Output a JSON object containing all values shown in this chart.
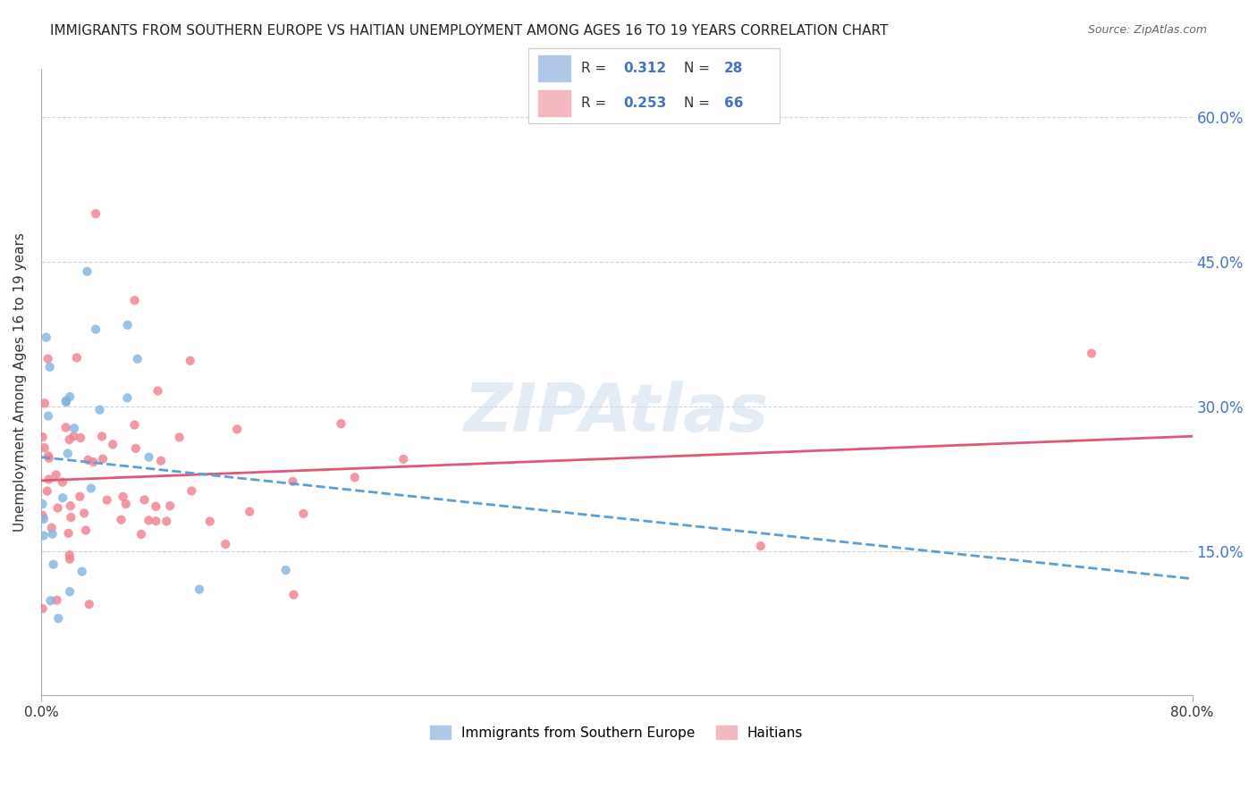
{
  "title": "IMMIGRANTS FROM SOUTHERN EUROPE VS HAITIAN UNEMPLOYMENT AMONG AGES 16 TO 19 YEARS CORRELATION CHART",
  "source": "Source: ZipAtlas.com",
  "xlim": [
    0.0,
    0.8
  ],
  "ylim": [
    0.0,
    0.65
  ],
  "yticks": [
    0.15,
    0.3,
    0.45,
    0.6
  ],
  "ytick_labels": [
    "15.0%",
    "30.0%",
    "45.0%",
    "60.0%"
  ],
  "blue_color": "#7fb3e0",
  "blue_line_color": "#5a9fd4",
  "blue_legend_color": "#aec6e8",
  "pink_color": "#f08090",
  "pink_line_color": "#e05878",
  "pink_legend_color": "#f4b8c1",
  "grid_color": "#c8d4e8",
  "axis_label_color": "#4472c4",
  "watermark": "ZIPAtlas",
  "background_color": "#ffffff",
  "title_fontsize": 11,
  "R_blue": 0.312,
  "N_blue": 28,
  "R_pink": 0.253,
  "N_pink": 66
}
